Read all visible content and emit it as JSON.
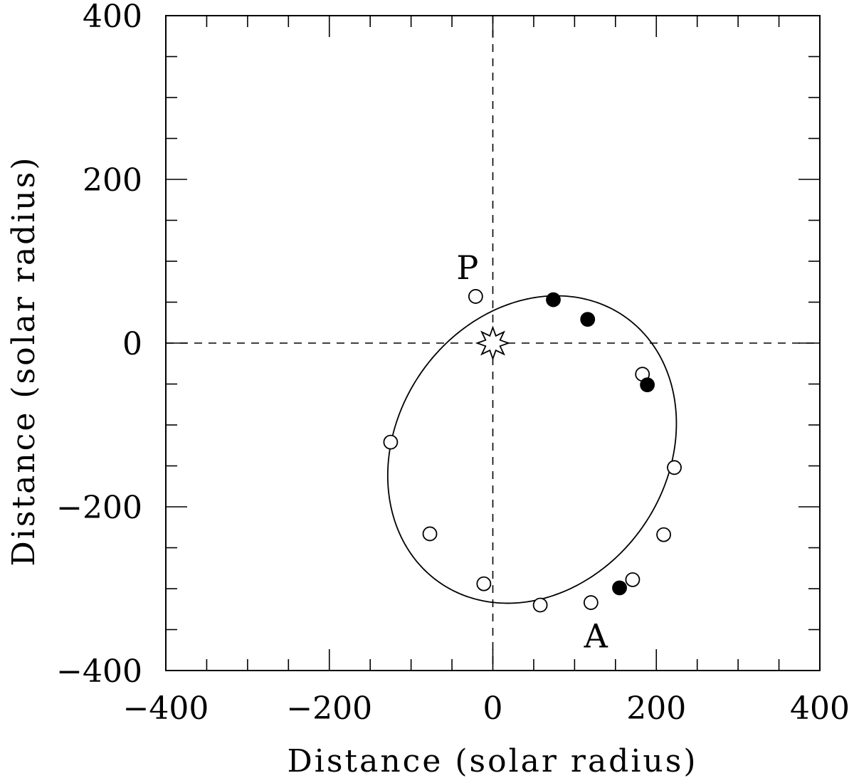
{
  "chart_data": {
    "type": "scatter",
    "title": "",
    "xlabel": "Distance (solar radius)",
    "ylabel": "Distance (solar radius)",
    "xlim": [
      -400,
      400
    ],
    "ylim": [
      -400,
      400
    ],
    "x_ticks": [
      -400,
      -200,
      0,
      200,
      400
    ],
    "x_tick_labels": [
      "−400",
      "−200",
      "0",
      "200",
      "400"
    ],
    "y_ticks": [
      -400,
      -200,
      0,
      200,
      400
    ],
    "y_tick_labels": [
      "−400",
      "−200",
      "0",
      "200",
      "400"
    ],
    "minor_tick_step": 50,
    "grid": false,
    "reference_lines": {
      "x": 0,
      "y": 0,
      "style": "dashed"
    },
    "central_star": {
      "x": 0,
      "y": 0,
      "marker": "star"
    },
    "orbit": {
      "type": "ellipse",
      "center": [
        48,
        -130
      ],
      "semi_major": 198,
      "semi_minor": 165,
      "rotation_deg": 55
    },
    "series": [
      {
        "marker": "open-circle",
        "points": [
          [
            -21,
            57
          ],
          [
            -125,
            -121
          ],
          [
            -77,
            -233
          ],
          [
            -11,
            -294
          ],
          [
            58,
            -320
          ],
          [
            120,
            -317
          ],
          [
            171,
            -289
          ],
          [
            209,
            -234
          ],
          [
            222,
            -152
          ],
          [
            183,
            -38
          ]
        ]
      },
      {
        "marker": "filled-circle",
        "points": [
          [
            74,
            53
          ],
          [
            116,
            29
          ],
          [
            189,
            -51
          ],
          [
            155,
            -299
          ]
        ]
      }
    ],
    "annotations": [
      {
        "text": "P",
        "x": -31,
        "y": 92
      },
      {
        "text": "A",
        "x": 126,
        "y": -358
      }
    ]
  }
}
